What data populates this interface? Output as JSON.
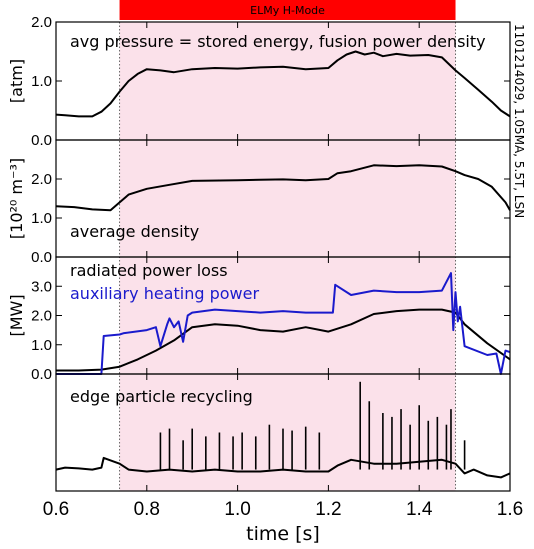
{
  "chart_data": {
    "type": "line",
    "shot_label": "1101214029, 1.05MA, 5.5T, LSN",
    "mode_band": {
      "label": "ELMy H-Mode",
      "x_start": 0.74,
      "x_end": 1.48,
      "bar_color": "#ff0000",
      "shade_color": "#fbe1ea"
    },
    "x_axis": {
      "label": "time [s]",
      "lim": [
        0.6,
        1.6
      ],
      "ticks": [
        0.6,
        0.8,
        1.0,
        1.2,
        1.4,
        1.6
      ],
      "tick_labels": [
        "0.6",
        "0.8",
        "1.0",
        "1.2",
        "1.4",
        "1.6"
      ]
    },
    "panels": [
      {
        "id": "pressure",
        "ylabel": "[atm]",
        "ylim": [
          0.0,
          2.0
        ],
        "ticks": [
          0.0,
          1.0,
          2.0
        ],
        "tick_labels": [
          "0.0",
          "1.0",
          "2.0"
        ],
        "annotations": [
          {
            "text": "avg pressure = stored energy, fusion power density",
            "color": "#000000"
          }
        ],
        "series": [
          {
            "color": "#000000",
            "x": [
              0.6,
              0.62,
              0.65,
              0.68,
              0.7,
              0.72,
              0.74,
              0.76,
              0.78,
              0.8,
              0.83,
              0.86,
              0.9,
              0.95,
              1.0,
              1.05,
              1.1,
              1.15,
              1.2,
              1.22,
              1.24,
              1.26,
              1.28,
              1.3,
              1.32,
              1.35,
              1.38,
              1.42,
              1.45,
              1.48,
              1.5,
              1.53,
              1.56,
              1.58,
              1.6
            ],
            "y": [
              0.43,
              0.42,
              0.4,
              0.4,
              0.48,
              0.62,
              0.82,
              1.0,
              1.12,
              1.2,
              1.18,
              1.15,
              1.2,
              1.22,
              1.21,
              1.23,
              1.24,
              1.2,
              1.22,
              1.35,
              1.45,
              1.5,
              1.45,
              1.48,
              1.42,
              1.46,
              1.43,
              1.44,
              1.4,
              1.18,
              1.05,
              0.85,
              0.65,
              0.5,
              0.4
            ]
          }
        ]
      },
      {
        "id": "density",
        "ylabel": "[10²⁰ m⁻³]",
        "ylim": [
          0.0,
          3.0
        ],
        "ticks": [
          0.0,
          1.0,
          2.0
        ],
        "tick_labels": [
          "0.0",
          "1.0",
          "2.0"
        ],
        "annotations": [
          {
            "text": "average density",
            "color": "#000000"
          }
        ],
        "series": [
          {
            "color": "#000000",
            "x": [
              0.6,
              0.64,
              0.68,
              0.72,
              0.74,
              0.76,
              0.8,
              0.85,
              0.9,
              1.0,
              1.05,
              1.1,
              1.15,
              1.2,
              1.22,
              1.25,
              1.3,
              1.35,
              1.4,
              1.45,
              1.48,
              1.5,
              1.53,
              1.56,
              1.59,
              1.6
            ],
            "y": [
              1.3,
              1.28,
              1.22,
              1.2,
              1.4,
              1.6,
              1.75,
              1.85,
              1.95,
              1.97,
              1.98,
              1.99,
              1.97,
              2.0,
              2.15,
              2.2,
              2.35,
              2.33,
              2.35,
              2.32,
              2.2,
              2.1,
              2.0,
              1.8,
              1.4,
              1.2
            ]
          }
        ]
      },
      {
        "id": "power",
        "ylabel": "[MW]",
        "ylim": [
          0.0,
          4.0
        ],
        "ticks": [
          0.0,
          1.0,
          2.0,
          3.0
        ],
        "tick_labels": [
          "0.0",
          "1.0",
          "2.0",
          "3.0"
        ],
        "annotations": [
          {
            "text": "radiated power loss",
            "color": "#000000"
          },
          {
            "text": "auxiliary heating power",
            "color": "#1a1acc"
          }
        ],
        "series": [
          {
            "color": "#000000",
            "x": [
              0.6,
              0.65,
              0.7,
              0.74,
              0.78,
              0.82,
              0.86,
              0.9,
              0.95,
              1.0,
              1.05,
              1.1,
              1.15,
              1.2,
              1.25,
              1.3,
              1.35,
              1.4,
              1.45,
              1.48,
              1.5,
              1.55,
              1.6
            ],
            "y": [
              0.12,
              0.12,
              0.15,
              0.25,
              0.5,
              0.8,
              1.15,
              1.6,
              1.7,
              1.65,
              1.5,
              1.45,
              1.6,
              1.45,
              1.7,
              2.05,
              2.15,
              2.2,
              2.2,
              2.1,
              1.7,
              1.05,
              0.5
            ]
          },
          {
            "color": "#1a1acc",
            "x": [
              0.6,
              0.7,
              0.705,
              0.74,
              0.75,
              0.8,
              0.82,
              0.83,
              0.845,
              0.85,
              0.86,
              0.87,
              0.88,
              0.89,
              0.9,
              0.95,
              1.0,
              1.05,
              1.1,
              1.15,
              1.2,
              1.21,
              1.215,
              1.25,
              1.3,
              1.35,
              1.4,
              1.45,
              1.47,
              1.475,
              1.48,
              1.485,
              1.49,
              1.5,
              1.55,
              1.57,
              1.58,
              1.59,
              1.6
            ],
            "y": [
              0.0,
              0.0,
              1.3,
              1.35,
              1.4,
              1.5,
              1.6,
              0.95,
              1.7,
              1.9,
              1.6,
              1.8,
              1.1,
              2.0,
              2.1,
              2.2,
              2.15,
              2.1,
              2.15,
              2.1,
              2.1,
              2.1,
              3.05,
              2.7,
              2.85,
              2.8,
              2.8,
              2.85,
              3.45,
              1.5,
              2.8,
              1.8,
              2.3,
              0.95,
              0.65,
              0.7,
              0.0,
              0.8,
              0.75
            ]
          }
        ]
      },
      {
        "id": "recycling",
        "ylabel": "",
        "ylim": [
          0.0,
          3.0
        ],
        "ticks": [],
        "tick_labels": [],
        "annotations": [
          {
            "text": "edge particle recycling",
            "color": "#000000"
          }
        ],
        "series": [
          {
            "color": "#000000",
            "x": [
              0.6,
              0.62,
              0.65,
              0.68,
              0.7,
              0.705,
              0.74,
              0.76,
              0.8,
              0.85,
              0.9,
              0.95,
              1.0,
              1.05,
              1.1,
              1.15,
              1.2,
              1.22,
              1.25,
              1.3,
              1.35,
              1.4,
              1.45,
              1.48,
              1.5,
              1.52,
              1.55,
              1.58,
              1.6
            ],
            "y": [
              0.55,
              0.6,
              0.58,
              0.55,
              0.6,
              0.85,
              0.7,
              0.55,
              0.5,
              0.55,
              0.5,
              0.55,
              0.5,
              0.5,
              0.55,
              0.5,
              0.5,
              0.65,
              0.8,
              0.7,
              0.7,
              0.75,
              0.8,
              0.7,
              0.45,
              0.55,
              0.4,
              0.35,
              0.45
            ]
          }
        ],
        "spikes": {
          "x": [
            0.83,
            0.85,
            0.88,
            0.9,
            0.93,
            0.96,
            0.99,
            1.01,
            1.04,
            1.07,
            1.1,
            1.12,
            1.15,
            1.18,
            1.27,
            1.29,
            1.32,
            1.34,
            1.36,
            1.38,
            1.4,
            1.42,
            1.44,
            1.46,
            1.47,
            1.5
          ],
          "y": [
            1.5,
            1.6,
            1.3,
            1.6,
            1.4,
            1.5,
            1.4,
            1.5,
            1.4,
            1.7,
            1.6,
            1.55,
            1.65,
            1.5,
            2.8,
            2.3,
            2.0,
            1.9,
            2.1,
            1.7,
            2.2,
            1.8,
            1.9,
            1.7,
            2.1,
            1.3
          ]
        }
      }
    ]
  }
}
